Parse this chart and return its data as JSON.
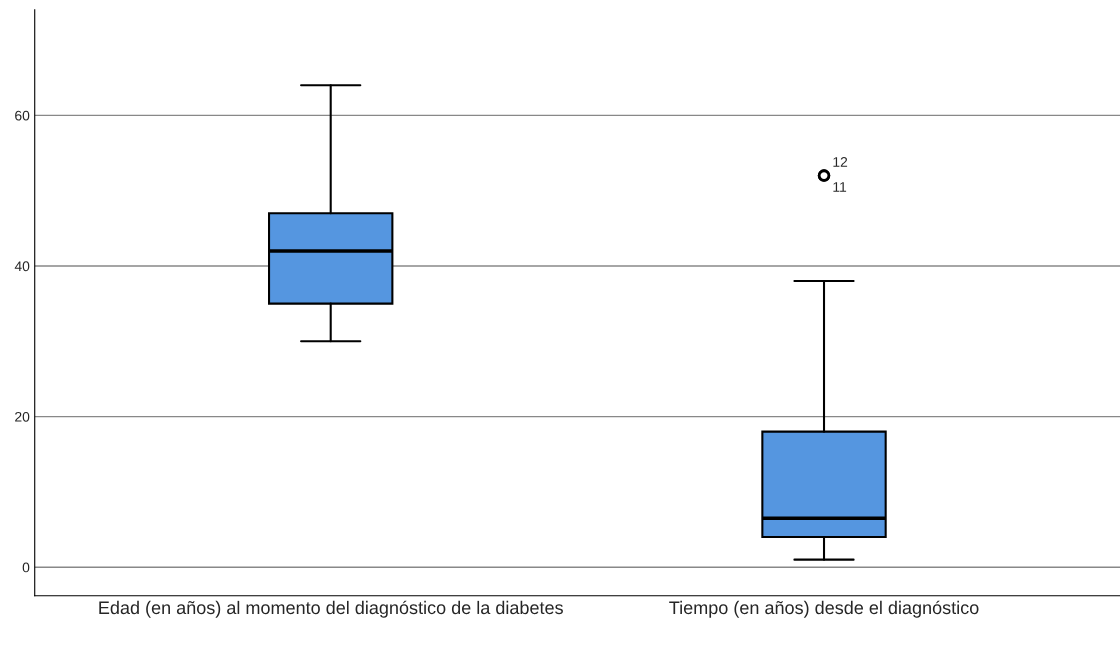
{
  "chart_data": {
    "type": "box",
    "categories": [
      "Edad (en años) al momento del diagnóstico de la diabetes",
      "Tiempo (en años) desde el diagnóstico"
    ],
    "boxes": [
      {
        "low": 30,
        "q1": 35,
        "median": 42,
        "q3": 47,
        "high": 64
      },
      {
        "low": 1,
        "q1": 4,
        "median": 6.5,
        "q3": 18,
        "high": 38,
        "outliers": [
          52,
          52
        ]
      }
    ],
    "color": "#5596e0",
    "ylim": [
      -3.8,
      74
    ],
    "yticks": [
      0,
      20,
      40,
      60
    ],
    "grid": "y",
    "annotations": [
      "12",
      "11"
    ]
  }
}
